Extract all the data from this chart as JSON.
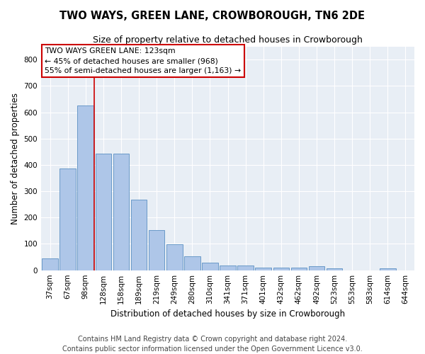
{
  "title": "TWO WAYS, GREEN LANE, CROWBOROUGH, TN6 2DE",
  "subtitle": "Size of property relative to detached houses in Crowborough",
  "xlabel": "Distribution of detached houses by size in Crowborough",
  "ylabel": "Number of detached properties",
  "categories": [
    "37sqm",
    "67sqm",
    "98sqm",
    "128sqm",
    "158sqm",
    "189sqm",
    "219sqm",
    "249sqm",
    "280sqm",
    "310sqm",
    "341sqm",
    "371sqm",
    "401sqm",
    "432sqm",
    "462sqm",
    "492sqm",
    "523sqm",
    "553sqm",
    "583sqm",
    "614sqm",
    "644sqm"
  ],
  "values": [
    46,
    385,
    625,
    443,
    443,
    268,
    152,
    98,
    52,
    29,
    17,
    17,
    11,
    11,
    11,
    14,
    7,
    0,
    0,
    7,
    0
  ],
  "bar_color": "#aec6e8",
  "bar_edge_color": "#5a8fc2",
  "vline_color": "#cc0000",
  "vline_x_index": 2.5,
  "annotation_line1": "TWO WAYS GREEN LANE: 123sqm",
  "annotation_line2": "← 45% of detached houses are smaller (968)",
  "annotation_line3": "55% of semi-detached houses are larger (1,163) →",
  "annotation_box_color": "#cc0000",
  "ylim": [
    0,
    850
  ],
  "yticks": [
    0,
    100,
    200,
    300,
    400,
    500,
    600,
    700,
    800
  ],
  "background_color": "#e8eef5",
  "grid_color": "#ffffff",
  "footer": "Contains HM Land Registry data © Crown copyright and database right 2024.\nContains public sector information licensed under the Open Government Licence v3.0.",
  "title_fontsize": 10.5,
  "subtitle_fontsize": 9,
  "ylabel_fontsize": 8.5,
  "xlabel_fontsize": 8.5,
  "tick_fontsize": 7.5,
  "annotation_fontsize": 7.8,
  "footer_fontsize": 7
}
